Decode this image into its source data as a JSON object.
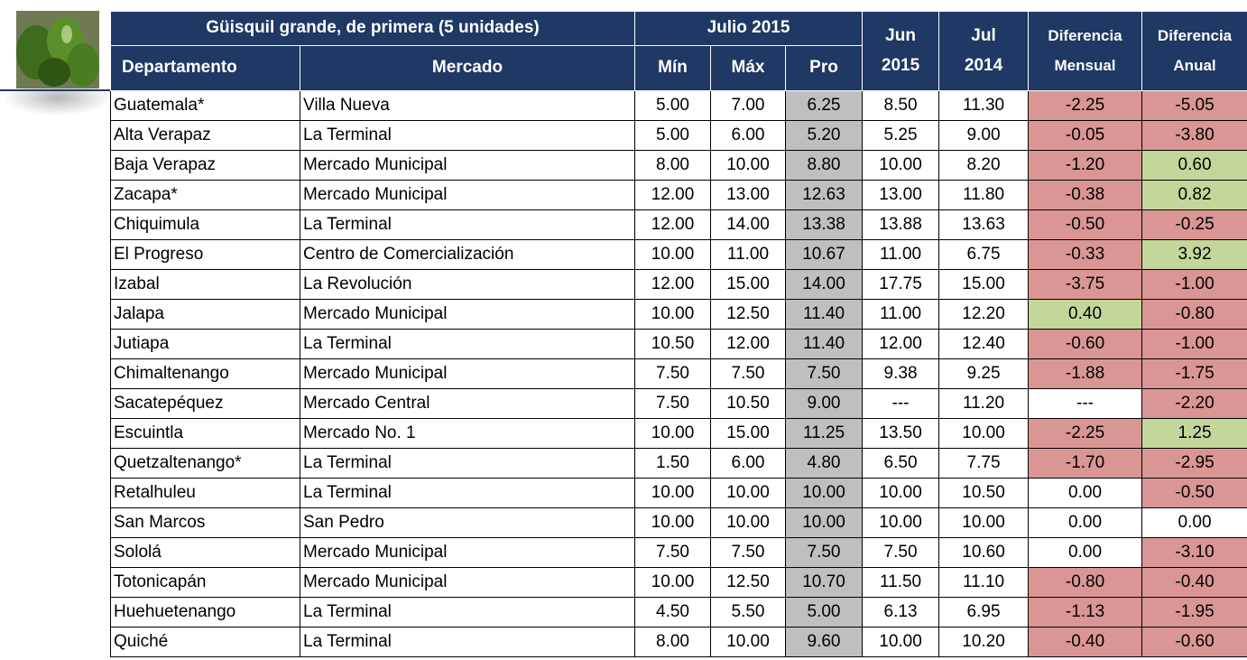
{
  "header": {
    "title": "Güisquil grande, de primera (5 unidades)",
    "period": "Julio 2015",
    "columns": [
      "Departamento",
      "Mercado",
      "Mín",
      "Máx",
      "Pro",
      "Jun\n2015",
      "Jul\n2014",
      "Diferencia\nMensual",
      "Diferencia\nAnual"
    ]
  },
  "table": {
    "rows": [
      [
        "Guatemala*",
        "Villa Nueva",
        "5.00",
        "7.00",
        "6.25",
        "8.50",
        "11.30",
        "-2.25",
        "-5.05"
      ],
      [
        "Alta Verapaz",
        "La Terminal",
        "5.00",
        "6.00",
        "5.20",
        "5.25",
        "9.00",
        "-0.05",
        "-3.80"
      ],
      [
        "Baja Verapaz",
        "Mercado Municipal",
        "8.00",
        "10.00",
        "8.80",
        "10.00",
        "8.20",
        "-1.20",
        "0.60"
      ],
      [
        "Zacapa*",
        "Mercado Municipal",
        "12.00",
        "13.00",
        "12.63",
        "13.00",
        "11.80",
        "-0.38",
        "0.82"
      ],
      [
        "Chiquimula",
        "La Terminal",
        "12.00",
        "14.00",
        "13.38",
        "13.88",
        "13.63",
        "-0.50",
        "-0.25"
      ],
      [
        "El Progreso",
        "Centro de Comercialización",
        "10.00",
        "11.00",
        "10.67",
        "11.00",
        "6.75",
        "-0.33",
        "3.92"
      ],
      [
        "Izabal",
        "La Revolución",
        "12.00",
        "15.00",
        "14.00",
        "17.75",
        "15.00",
        "-3.75",
        "-1.00"
      ],
      [
        "Jalapa",
        "Mercado Municipal",
        "10.00",
        "12.50",
        "11.40",
        "11.00",
        "12.20",
        "0.40",
        "-0.80"
      ],
      [
        "Jutiapa",
        "La Terminal",
        "10.50",
        "12.00",
        "11.40",
        "12.00",
        "12.40",
        "-0.60",
        "-1.00"
      ],
      [
        "Chimaltenango",
        "Mercado Municipal",
        "7.50",
        "7.50",
        "7.50",
        "9.38",
        "9.25",
        "-1.88",
        "-1.75"
      ],
      [
        "Sacatepéquez",
        "Mercado Central",
        "7.50",
        "10.50",
        "9.00",
        "---",
        "11.20",
        "---",
        "-2.20"
      ],
      [
        "Escuintla",
        "Mercado No. 1",
        "10.00",
        "15.00",
        "11.25",
        "13.50",
        "10.00",
        "-2.25",
        "1.25"
      ],
      [
        "Quetzaltenango*",
        "La Terminal",
        "1.50",
        "6.00",
        "4.80",
        "6.50",
        "7.75",
        "-1.70",
        "-2.95"
      ],
      [
        "Retalhuleu",
        "La Terminal",
        "10.00",
        "10.00",
        "10.00",
        "10.00",
        "10.50",
        "0.00",
        "-0.50"
      ],
      [
        "San Marcos",
        "San Pedro",
        "10.00",
        "10.00",
        "10.00",
        "10.00",
        "10.00",
        "0.00",
        "0.00"
      ],
      [
        "Sololá",
        "Mercado Municipal",
        "7.50",
        "7.50",
        "7.50",
        "7.50",
        "10.60",
        "0.00",
        "-3.10"
      ],
      [
        "Totonicapán",
        "Mercado Municipal",
        "10.00",
        "12.50",
        "10.70",
        "11.50",
        "11.10",
        "-0.80",
        "-0.40"
      ],
      [
        "Huehuetenango",
        "La Terminal",
        "4.50",
        "5.50",
        "5.00",
        "6.13",
        "6.95",
        "-1.13",
        "-1.95"
      ],
      [
        "Quiché",
        "La Terminal",
        "8.00",
        "10.00",
        "9.60",
        "10.00",
        "10.20",
        "-0.40",
        "-0.60"
      ]
    ]
  }
}
